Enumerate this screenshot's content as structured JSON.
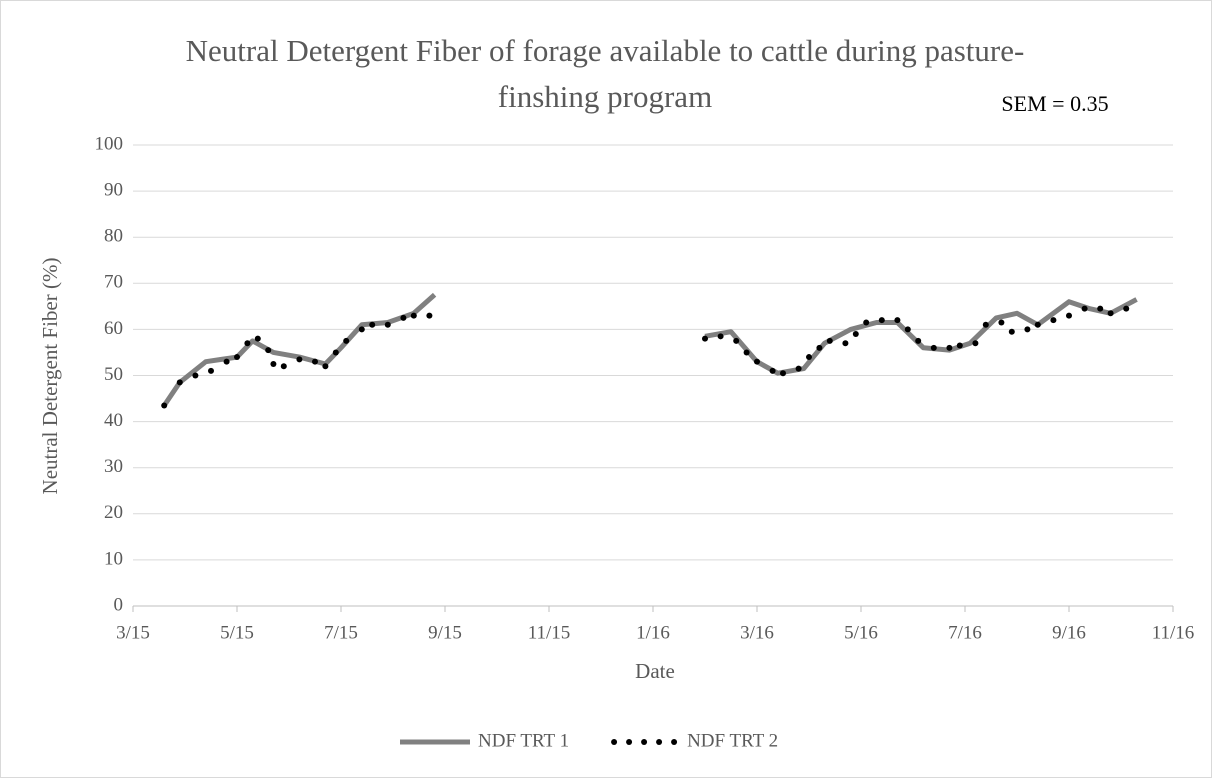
{
  "chart_data": {
    "type": "line",
    "title": "Neutral Detergent Fiber of forage available to cattle during pasture-finshing program",
    "annotation": "SEM = 0.35",
    "x_label": "Date",
    "y_label": "Neutral Detergent Fiber (%)",
    "xlim": [
      0,
      20
    ],
    "xticks": [
      {
        "value": 0,
        "label": "3/15"
      },
      {
        "value": 2,
        "label": "5/15"
      },
      {
        "value": 4,
        "label": "7/15"
      },
      {
        "value": 6,
        "label": "9/15"
      },
      {
        "value": 8,
        "label": "11/15"
      },
      {
        "value": 10,
        "label": "1/16"
      },
      {
        "value": 12,
        "label": "3/16"
      },
      {
        "value": 14,
        "label": "5/16"
      },
      {
        "value": 16,
        "label": "7/16"
      },
      {
        "value": 18,
        "label": "9/16"
      },
      {
        "value": 20,
        "label": "11/16"
      }
    ],
    "ylim": [
      0,
      100
    ],
    "yticks": [
      0,
      10,
      20,
      30,
      40,
      50,
      60,
      70,
      80,
      90,
      100
    ],
    "grid": true,
    "legend": "bottom",
    "series": [
      {
        "name": "NDF TRT 1",
        "color": "#808080",
        "style": "solid",
        "x": [
          0.6,
          0.9,
          1.4,
          1.7,
          2.0,
          2.3,
          2.7,
          3.2,
          3.7,
          4.0,
          4.4,
          4.9,
          5.4,
          5.8,
          null,
          11.0,
          11.5,
          12.0,
          12.4,
          12.9,
          13.3,
          13.8,
          14.3,
          14.7,
          15.2,
          15.7,
          16.1,
          16.6,
          17.0,
          17.4,
          18.0,
          18.4,
          18.8,
          19.3
        ],
        "values": [
          43.5,
          48.5,
          53,
          53.5,
          54,
          57.5,
          55,
          54,
          52.5,
          56,
          61,
          61.5,
          63.5,
          67.5,
          null,
          58.5,
          59.5,
          53,
          50.5,
          51.5,
          57,
          60,
          61.5,
          61.5,
          56,
          55.5,
          57,
          62.5,
          63.5,
          61,
          66,
          64.5,
          63.5,
          66.5
        ]
      },
      {
        "name": "NDF TRT 2",
        "color": "#000000",
        "style": "dotted",
        "x": [
          0.6,
          0.9,
          1.2,
          1.5,
          1.8,
          2.0,
          2.2,
          2.4,
          2.6,
          2.7,
          2.9,
          3.2,
          3.5,
          3.7,
          3.9,
          4.1,
          4.4,
          4.6,
          4.9,
          5.2,
          5.4,
          5.7,
          null,
          11.0,
          11.3,
          11.6,
          11.8,
          12.0,
          12.3,
          12.5,
          12.8,
          13.0,
          13.2,
          13.4,
          13.7,
          13.9,
          14.1,
          14.4,
          14.7,
          14.9,
          15.1,
          15.4,
          15.7,
          15.9,
          16.2,
          16.4,
          16.7,
          16.9,
          17.2,
          17.4,
          17.7,
          18.0,
          18.3,
          18.6,
          18.8,
          19.1
        ],
        "values": [
          43.5,
          48.5,
          50,
          51,
          53,
          54,
          57,
          58,
          55.5,
          52.5,
          52,
          53.5,
          53,
          52,
          55,
          57.5,
          60,
          61,
          61,
          62.5,
          63,
          63,
          null,
          58,
          58.5,
          57.5,
          55,
          53,
          51,
          50.5,
          51.5,
          54,
          56,
          57.5,
          57,
          59,
          61.5,
          62,
          62,
          60,
          57.5,
          56,
          56,
          56.5,
          57,
          61,
          61.5,
          59.5,
          60,
          61,
          62,
          63,
          64.5,
          64.5,
          63.5,
          64.5
        ]
      }
    ]
  }
}
